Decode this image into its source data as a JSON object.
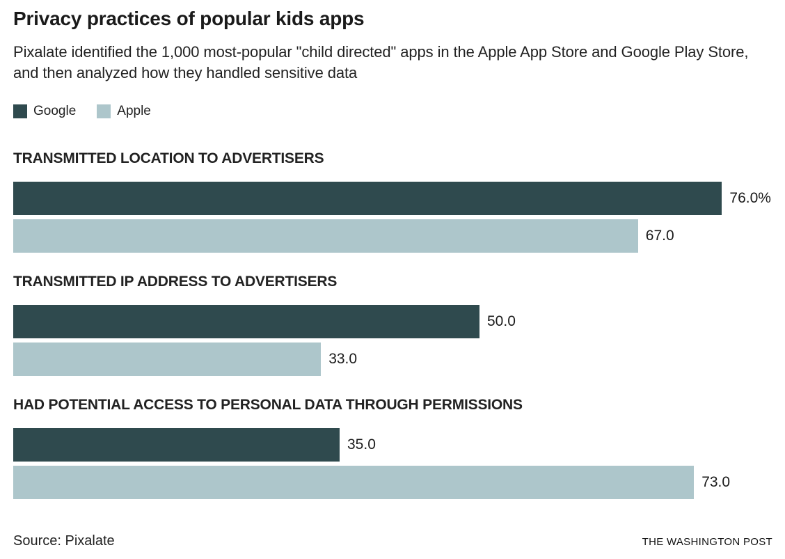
{
  "title": "Privacy practices of popular kids apps",
  "subtitle": "Pixalate identified the 1,000 most-popular \"child directed\" apps in the Apple App Store and Google Play Store, and then analyzed how they handled sensitive data",
  "colors": {
    "google": "#2f4a4e",
    "apple": "#adc6cb"
  },
  "legend": {
    "items": [
      {
        "label": "Google",
        "color": "#2f4a4e"
      },
      {
        "label": "Apple",
        "color": "#adc6cb"
      }
    ]
  },
  "chart_data": {
    "type": "bar",
    "orientation": "horizontal",
    "title": "Privacy practices of popular kids apps",
    "value_unit": "percent",
    "xlim": [
      0,
      81
    ],
    "grid": false,
    "legend_position": "top-left",
    "categories": [
      "TRANSMITTED LOCATION TO ADVERTISERS",
      "TRANSMITTED IP ADDRESS TO ADVERTISERS",
      "HAD POTENTIAL ACCESS TO PERSONAL DATA THROUGH PERMISSIONS"
    ],
    "series": [
      {
        "name": "Google",
        "color": "#2f4a4e",
        "values": [
          76.0,
          50.0,
          35.0
        ]
      },
      {
        "name": "Apple",
        "color": "#adc6cb",
        "values": [
          67.0,
          33.0,
          73.0
        ]
      }
    ],
    "value_labels": [
      [
        "76.0%",
        "67.0"
      ],
      [
        "50.0",
        "33.0"
      ],
      [
        "35.0",
        "73.0"
      ]
    ]
  },
  "groups": [
    {
      "label": "TRANSMITTED LOCATION TO ADVERTISERS",
      "bars": [
        {
          "series": "Google",
          "value": 76.0,
          "display": "76.0%"
        },
        {
          "series": "Apple",
          "value": 67.0,
          "display": "67.0"
        }
      ]
    },
    {
      "label": "TRANSMITTED IP ADDRESS TO ADVERTISERS",
      "bars": [
        {
          "series": "Google",
          "value": 50.0,
          "display": "50.0"
        },
        {
          "series": "Apple",
          "value": 33.0,
          "display": "33.0"
        }
      ]
    },
    {
      "label": "HAD POTENTIAL ACCESS TO PERSONAL DATA THROUGH PERMISSIONS",
      "bars": [
        {
          "series": "Google",
          "value": 35.0,
          "display": "35.0"
        },
        {
          "series": "Apple",
          "value": 73.0,
          "display": "73.0"
        }
      ]
    }
  ],
  "footer": {
    "source": "Source: Pixalate",
    "credit": "THE WASHINGTON POST"
  }
}
